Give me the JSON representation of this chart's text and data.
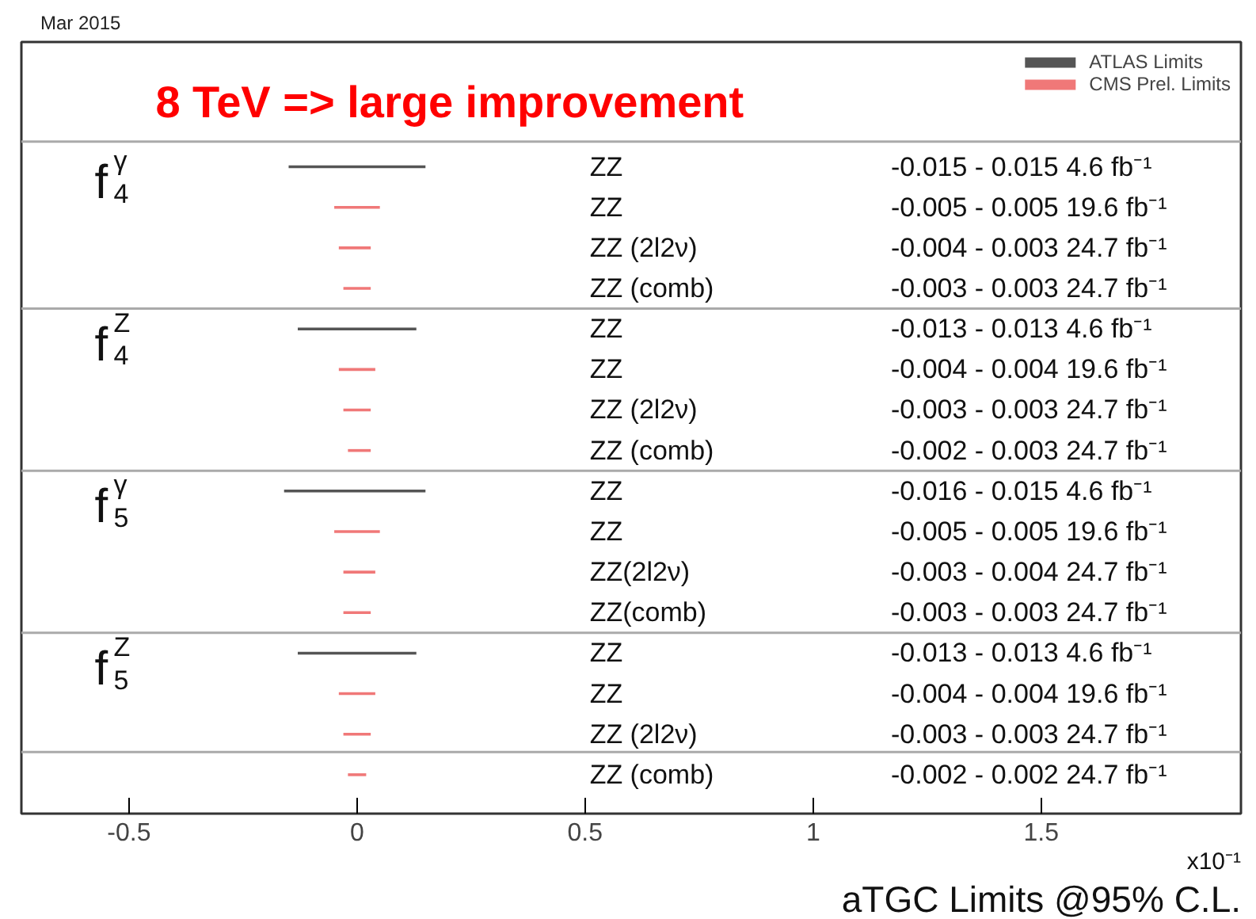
{
  "chart_data": {
    "type": "bar",
    "orientation": "horizontal",
    "xlabel": "aTGC Limits @95% C.L.",
    "annotations": [
      "Mar 2015",
      "8 TeV => large improvement",
      "x10⁻¹",
      "f$^{γ}$$_{4}$",
      "f$^{Z}$$_{4}$",
      "f$^{γ}$$_{5}$",
      "f$^{Z}$$_{5}$"
    ],
    "categories": [
      "ZZ",
      "ZZ",
      "ZZ (2l2ν)",
      "ZZ (comb)",
      "ZZ",
      "ZZ",
      "ZZ (2l2ν)",
      "ZZ (comb)",
      "ZZ",
      "ZZ",
      "ZZ(2l2ν)",
      "ZZ(comb)",
      "ZZ",
      "ZZ",
      "ZZ (2l2ν)",
      "ZZ (comb)"
    ],
    "series": [
      {
        "name": "ATLAS Limits",
        "color": "#555555",
        "base": [
          -0.15,
          null,
          null,
          null,
          -0.13,
          null,
          null,
          null,
          -0.16,
          null,
          null,
          null,
          -0.13,
          null,
          null,
          null
        ],
        "values": [
          0.3,
          null,
          null,
          null,
          0.26,
          null,
          null,
          null,
          0.31,
          null,
          null,
          null,
          0.26,
          null,
          null,
          null
        ]
      },
      {
        "name": "CMS Prel. Limits",
        "color": "#f07878",
        "base": [
          null,
          -0.05,
          -0.04,
          -0.03,
          null,
          -0.04,
          -0.03,
          -0.02,
          null,
          -0.05,
          -0.03,
          -0.03,
          null,
          -0.04,
          -0.03,
          -0.02
        ],
        "values": [
          null,
          0.1,
          0.07,
          0.06,
          null,
          0.08,
          0.06,
          0.05,
          null,
          0.1,
          0.07,
          0.06,
          null,
          0.08,
          0.06,
          0.04
        ]
      }
    ],
    "value_labels": [
      "-0.015 - 0.015  4.6 fb⁻¹",
      "-0.005 - 0.005  19.6 fb⁻¹",
      "-0.004 - 0.003  24.7 fb⁻¹",
      "-0.003 - 0.003  24.7 fb⁻¹",
      "-0.013 - 0.013  4.6 fb⁻¹",
      "-0.004 - 0.004  19.6 fb⁻¹",
      "-0.003 - 0.003  24.7 fb⁻¹",
      "-0.002 - 0.003  24.7 fb⁻¹",
      "-0.016 - 0.015  4.6 fb⁻¹",
      "-0.005 - 0.005  19.6 fb⁻¹",
      "-0.003 - 0.004  24.7 fb⁻¹",
      "-0.003 - 0.003  24.7 fb⁻¹",
      "-0.013 - 0.013  4.6 fb⁻¹",
      "-0.004 - 0.004  19.6 fb⁻¹",
      "-0.003 - 0.003  24.7 fb⁻¹",
      "-0.002 - 0.002  24.7 fb⁻¹"
    ],
    "xlim": [
      -0.736,
      1.938
    ],
    "xticks": [
      -0.5,
      0,
      0.5,
      1,
      1.5
    ],
    "tick_labels": "x",
    "grid": false,
    "legend": "top right"
  }
}
